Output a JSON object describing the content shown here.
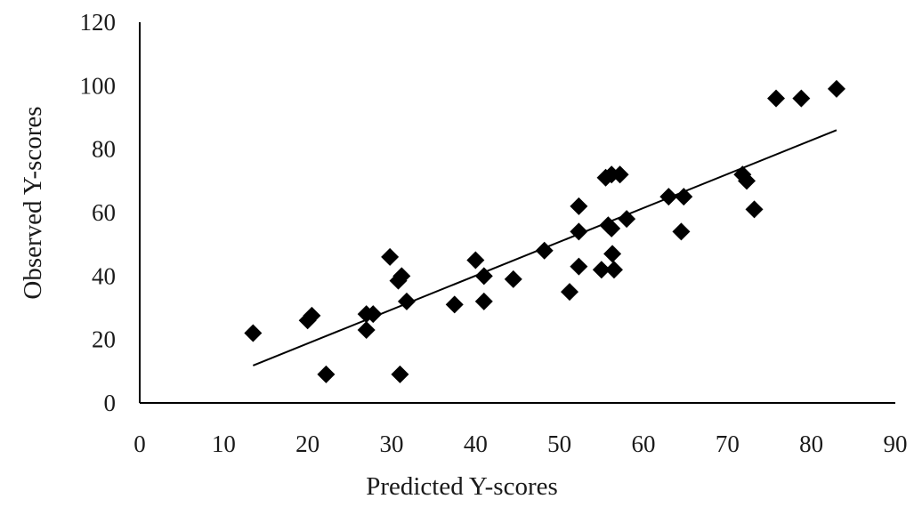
{
  "chart_data": {
    "type": "scatter",
    "title": "",
    "xlabel": "Predicted Y-scores",
    "ylabel": "Observed Y-scores",
    "xlim": [
      0,
      90
    ],
    "ylim": [
      0,
      120
    ],
    "x_ticks": [
      "0",
      "10",
      "20",
      "30",
      "40",
      "50",
      "60",
      "70",
      "80",
      "90"
    ],
    "y_ticks": [
      "0",
      "20",
      "40",
      "60",
      "80",
      "100",
      "120"
    ],
    "grid": false,
    "legend": "none",
    "marker": "diamond",
    "marker_color": "#000000",
    "trendline": {
      "type": "linear",
      "x_start": 13.5,
      "y_start": 11.8,
      "x_end": 83,
      "y_end": 86
    },
    "series": [
      {
        "points": [
          {
            "x": 13.5,
            "y": 22
          },
          {
            "x": 20.0,
            "y": 26
          },
          {
            "x": 20.5,
            "y": 27.5
          },
          {
            "x": 22.2,
            "y": 9
          },
          {
            "x": 27.0,
            "y": 23
          },
          {
            "x": 27.0,
            "y": 28
          },
          {
            "x": 27.8,
            "y": 28
          },
          {
            "x": 29.8,
            "y": 46
          },
          {
            "x": 30.8,
            "y": 38.5
          },
          {
            "x": 31.2,
            "y": 40
          },
          {
            "x": 31.8,
            "y": 32
          },
          {
            "x": 31.0,
            "y": 9
          },
          {
            "x": 37.5,
            "y": 31
          },
          {
            "x": 40.0,
            "y": 45
          },
          {
            "x": 41.0,
            "y": 40
          },
          {
            "x": 41.0,
            "y": 32
          },
          {
            "x": 44.5,
            "y": 39
          },
          {
            "x": 48.2,
            "y": 48
          },
          {
            "x": 51.2,
            "y": 35
          },
          {
            "x": 52.3,
            "y": 62
          },
          {
            "x": 52.3,
            "y": 54
          },
          {
            "x": 52.3,
            "y": 43
          },
          {
            "x": 55.0,
            "y": 42
          },
          {
            "x": 55.5,
            "y": 71
          },
          {
            "x": 55.8,
            "y": 56
          },
          {
            "x": 56.2,
            "y": 72
          },
          {
            "x": 56.2,
            "y": 55
          },
          {
            "x": 56.3,
            "y": 47
          },
          {
            "x": 56.5,
            "y": 42
          },
          {
            "x": 57.2,
            "y": 72
          },
          {
            "x": 58.0,
            "y": 58
          },
          {
            "x": 63.0,
            "y": 65
          },
          {
            "x": 64.5,
            "y": 54
          },
          {
            "x": 64.8,
            "y": 65
          },
          {
            "x": 71.8,
            "y": 72
          },
          {
            "x": 72.3,
            "y": 70
          },
          {
            "x": 73.2,
            "y": 61
          },
          {
            "x": 75.8,
            "y": 96
          },
          {
            "x": 78.8,
            "y": 96
          },
          {
            "x": 83.0,
            "y": 99
          }
        ]
      }
    ]
  }
}
